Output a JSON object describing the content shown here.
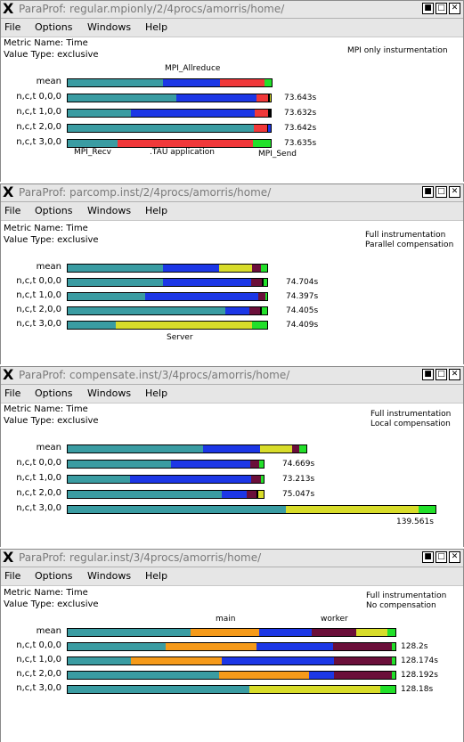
{
  "colors": {
    "teal": "#3a9ca2",
    "blue": "#1c37e6",
    "red": "#f0383a",
    "green": "#22e02a",
    "yellow": "#d8dc2a",
    "maroon": "#6b0f3a",
    "orange": "#f59a1a",
    "black": "#000000"
  },
  "menu": {
    "file": "File",
    "options": "Options",
    "windows": "Windows",
    "help": "Help"
  },
  "windows": [
    {
      "title": "ParaProf: regular.mpionly/2/4procs/amorris/home/",
      "metric_name": "Metric Name: Time",
      "value_type": "Value Type: exclusive",
      "note_line1": "MPI only insturmentation",
      "note_line2": "",
      "top_labels": [
        "MPI_Allreduce"
      ],
      "bottom_labels": [
        "MPI_Recv",
        ".TAU application",
        "MPI_Send"
      ],
      "rows": [
        {
          "label": "mean",
          "value": "",
          "segments": [
            {
              "color": "teal",
              "frac": 0.469
            },
            {
              "color": "blue",
              "frac": 0.279
            },
            {
              "color": "red",
              "frac": 0.219
            },
            {
              "color": "green",
              "frac": 0.033
            }
          ]
        },
        {
          "label": "n,c,t 0,0,0",
          "value": "73.643s",
          "segments": [
            {
              "color": "teal",
              "frac": 0.536
            },
            {
              "color": "blue",
              "frac": 0.394
            },
            {
              "color": "red",
              "frac": 0.058
            },
            {
              "color": "black",
              "frac": 0.006
            },
            {
              "color": "yellow",
              "frac": 0.006
            }
          ]
        },
        {
          "label": "n,c,t 1,0,0",
          "value": "73.632s",
          "segments": [
            {
              "color": "teal",
              "frac": 0.309
            },
            {
              "color": "blue",
              "frac": 0.613
            },
            {
              "color": "red",
              "frac": 0.066
            },
            {
              "color": "black",
              "frac": 0.012
            }
          ]
        },
        {
          "label": "n,c,t 2,0,0",
          "value": "73.642s",
          "segments": [
            {
              "color": "teal",
              "frac": 0.916
            },
            {
              "color": "red",
              "frac": 0.066
            },
            {
              "color": "black",
              "frac": 0.006
            },
            {
              "color": "blue",
              "frac": 0.012
            }
          ]
        },
        {
          "label": "n,c,t 3,0,0",
          "value": "73.635s",
          "segments": [
            {
              "color": "teal",
              "frac": 0.247
            },
            {
              "color": "red",
              "frac": 0.667
            },
            {
              "color": "green",
              "frac": 0.086
            }
          ]
        }
      ]
    },
    {
      "title": "ParaProf: parcomp.inst/2/4procs/amorris/home/",
      "metric_name": "Metric Name: Time",
      "value_type": "Value Type: exclusive",
      "note_line1": "Full instrumentation",
      "note_line2": "Parallel compensation",
      "top_labels": [],
      "bottom_labels": [
        "Server"
      ],
      "rows": [
        {
          "label": "mean",
          "value": "",
          "segments": [
            {
              "color": "teal",
              "frac": 0.478
            },
            {
              "color": "blue",
              "frac": 0.283
            },
            {
              "color": "yellow",
              "frac": 0.165
            },
            {
              "color": "maroon",
              "frac": 0.043
            },
            {
              "color": "green",
              "frac": 0.031
            }
          ]
        },
        {
          "label": "n,c,t 0,0,0",
          "value": "74.704s",
          "segments": [
            {
              "color": "teal",
              "frac": 0.478
            },
            {
              "color": "blue",
              "frac": 0.443
            },
            {
              "color": "maroon",
              "frac": 0.052
            },
            {
              "color": "black",
              "frac": 0.009
            },
            {
              "color": "green",
              "frac": 0.018
            }
          ]
        },
        {
          "label": "n,c,t 1,0,0",
          "value": "74.397s",
          "segments": [
            {
              "color": "teal",
              "frac": 0.387
            },
            {
              "color": "blue",
              "frac": 0.567
            },
            {
              "color": "maroon",
              "frac": 0.037
            },
            {
              "color": "green",
              "frac": 0.009
            }
          ]
        },
        {
          "label": "n,c,t 2,0,0",
          "value": "74.405s",
          "segments": [
            {
              "color": "teal",
              "frac": 0.791
            },
            {
              "color": "blue",
              "frac": 0.122
            },
            {
              "color": "maroon",
              "frac": 0.052
            },
            {
              "color": "black",
              "frac": 0.009
            },
            {
              "color": "green",
              "frac": 0.026
            }
          ]
        },
        {
          "label": "n,c,t 3,0,0",
          "value": "74.409s",
          "segments": [
            {
              "color": "teal",
              "frac": 0.243
            },
            {
              "color": "yellow",
              "frac": 0.683
            },
            {
              "color": "green",
              "frac": 0.074
            }
          ]
        }
      ]
    },
    {
      "title": "ParaProf: compensate.inst/3/4procs/amorris/home/",
      "metric_name": "Metric Name: Time",
      "value_type": "Value Type: exclusive",
      "note_line1": "Full instrumentation",
      "note_line2": "Local compensation",
      "top_labels": [],
      "bottom_labels": [],
      "rows": [
        {
          "label": "mean",
          "value": "",
          "segments": [
            {
              "color": "teal",
              "frac": 0.567
            },
            {
              "color": "blue",
              "frac": 0.237
            },
            {
              "color": "yellow",
              "frac": 0.137
            },
            {
              "color": "maroon",
              "frac": 0.03
            },
            {
              "color": "green",
              "frac": 0.029
            }
          ]
        },
        {
          "label": "n,c,t 0,0,0",
          "value": "74.669s",
          "segments": [
            {
              "color": "teal",
              "frac": 0.526
            },
            {
              "color": "blue",
              "frac": 0.404
            },
            {
              "color": "maroon",
              "frac": 0.048
            },
            {
              "color": "green",
              "frac": 0.022
            }
          ]
        },
        {
          "label": "n,c,t 1,0,0",
          "value": "73.213s",
          "segments": [
            {
              "color": "teal",
              "frac": 0.317
            },
            {
              "color": "blue",
              "frac": 0.622
            },
            {
              "color": "maroon",
              "frac": 0.048
            },
            {
              "color": "green",
              "frac": 0.013
            }
          ]
        },
        {
          "label": "n,c,t 2,0,0",
          "value": "75.047s",
          "segments": [
            {
              "color": "teal",
              "frac": 0.787
            },
            {
              "color": "blue",
              "frac": 0.126
            },
            {
              "color": "maroon",
              "frac": 0.052
            },
            {
              "color": "black",
              "frac": 0.009
            },
            {
              "color": "yellow",
              "frac": 0.026
            }
          ]
        },
        {
          "label": "n,c,t 3,0,0",
          "value": "139.561s",
          "segments": [
            {
              "color": "teal",
              "frac": 0.593
            },
            {
              "color": "yellow",
              "frac": 0.362
            },
            {
              "color": "green",
              "frac": 0.045
            }
          ]
        }
      ]
    },
    {
      "title": "ParaProf: regular.inst/3/4procs/amorris/home/",
      "metric_name": "Metric Name: Time",
      "value_type": "Value Type: exclusive",
      "note_line1": "Full instrumentation",
      "note_line2": "No compensation",
      "top_labels": [
        "main",
        "worker"
      ],
      "bottom_labels": [],
      "rows": [
        {
          "label": "mean",
          "value": "",
          "segments": [
            {
              "color": "teal",
              "frac": 0.376
            },
            {
              "color": "orange",
              "frac": 0.209
            },
            {
              "color": "blue",
              "frac": 0.161
            },
            {
              "color": "maroon",
              "frac": 0.134
            },
            {
              "color": "yellow",
              "frac": 0.097
            },
            {
              "color": "green",
              "frac": 0.023
            }
          ]
        },
        {
          "label": "n,c,t 0,0,0",
          "value": "128.2s",
          "segments": [
            {
              "color": "teal",
              "frac": 0.3
            },
            {
              "color": "orange",
              "frac": 0.276
            },
            {
              "color": "blue",
              "frac": 0.233
            },
            {
              "color": "maroon",
              "frac": 0.18
            },
            {
              "color": "green",
              "frac": 0.011
            }
          ]
        },
        {
          "label": "n,c,t 1,0,0",
          "value": "128.174s",
          "segments": [
            {
              "color": "teal",
              "frac": 0.193
            },
            {
              "color": "orange",
              "frac": 0.276
            },
            {
              "color": "blue",
              "frac": 0.343
            },
            {
              "color": "maroon",
              "frac": 0.177
            },
            {
              "color": "green",
              "frac": 0.011
            }
          ]
        },
        {
          "label": "n,c,t 2,0,0",
          "value": "128.192s",
          "segments": [
            {
              "color": "teal",
              "frac": 0.461
            },
            {
              "color": "orange",
              "frac": 0.276
            },
            {
              "color": "blue",
              "frac": 0.075
            },
            {
              "color": "maroon",
              "frac": 0.177
            },
            {
              "color": "green",
              "frac": 0.011
            }
          ]
        },
        {
          "label": "n,c,t 3,0,0",
          "value": "128.18s",
          "segments": [
            {
              "color": "teal",
              "frac": 0.555
            },
            {
              "color": "yellow",
              "frac": 0.399
            },
            {
              "color": "green",
              "frac": 0.046
            }
          ]
        }
      ]
    }
  ]
}
